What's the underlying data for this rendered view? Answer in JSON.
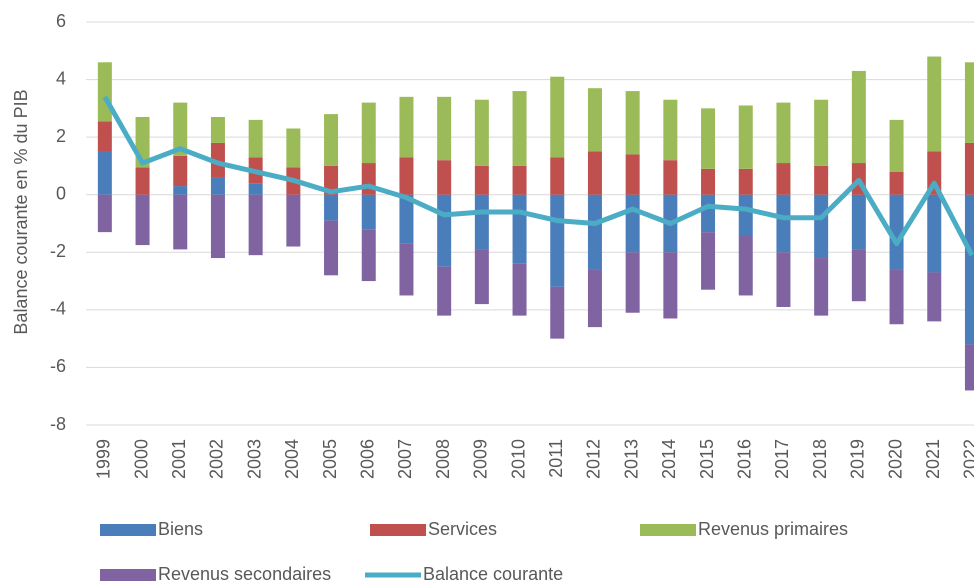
{
  "chart_data": {
    "type": "bar",
    "y_label": "Balance courante en % du PIB",
    "categories": [
      "1999",
      "2000",
      "2001",
      "2002",
      "2003",
      "2004",
      "2005",
      "2006",
      "2007",
      "2008",
      "2009",
      "2010",
      "2011",
      "2012",
      "2013",
      "2014",
      "2015",
      "2016",
      "2017",
      "2018",
      "2019",
      "2020",
      "2021",
      "2022"
    ],
    "series": [
      {
        "name": "Biens",
        "color": "#4a7ebb",
        "type": "bar",
        "values": [
          1.5,
          0,
          0.3,
          0.6,
          0.4,
          0,
          -0.9,
          -1.2,
          -1.7,
          -2.5,
          -1.9,
          -2.4,
          -3.2,
          -2.6,
          -2.0,
          -2.0,
          -1.3,
          -1.4,
          -2.0,
          -2.2,
          -1.9,
          -2.6,
          -2.7,
          -5.2
        ]
      },
      {
        "name": "Services",
        "color": "#c0504d",
        "type": "bar",
        "values": [
          1.05,
          0.95,
          1.05,
          1.2,
          0.9,
          0.95,
          1.0,
          1.1,
          1.3,
          1.2,
          1.0,
          1.0,
          1.3,
          1.5,
          1.4,
          1.2,
          0.9,
          0.9,
          1.1,
          1.0,
          1.1,
          0.8,
          1.5,
          1.8
        ]
      },
      {
        "name": "Revenus primaires",
        "color": "#9bbb59",
        "type": "bar",
        "values": [
          2.05,
          1.75,
          1.85,
          0.9,
          1.3,
          1.35,
          1.8,
          2.1,
          2.1,
          2.2,
          2.3,
          2.6,
          2.8,
          2.2,
          2.2,
          2.1,
          2.1,
          2.2,
          2.1,
          2.3,
          3.2,
          1.8,
          3.3,
          2.8
        ]
      },
      {
        "name": "Revenus secondaires",
        "color": "#8064a2",
        "type": "bar",
        "values": [
          -1.3,
          -1.75,
          -1.9,
          -2.2,
          -2.1,
          -1.8,
          -1.9,
          -1.8,
          -1.8,
          -1.7,
          -1.9,
          -1.8,
          -1.8,
          -2.0,
          -2.1,
          -2.3,
          -2.0,
          -2.1,
          -1.9,
          -2.0,
          -1.8,
          -1.9,
          -1.7,
          -1.6
        ]
      },
      {
        "name": "Balance courante",
        "color": "#4bacc6",
        "type": "line",
        "values": [
          3.4,
          1.1,
          1.6,
          1.1,
          0.8,
          0.5,
          0.1,
          0.3,
          -0.1,
          -0.7,
          -0.6,
          -0.6,
          -0.9,
          -1.0,
          -0.5,
          -1.0,
          -0.4,
          -0.5,
          -0.8,
          -0.8,
          0.5,
          -1.7,
          0.4,
          -2.1
        ]
      }
    ],
    "ylim": [
      -8,
      6
    ],
    "yticks": [
      -8,
      -6,
      -4,
      -2,
      0,
      2,
      4,
      6
    ],
    "grid": true,
    "legend": "bottom"
  }
}
